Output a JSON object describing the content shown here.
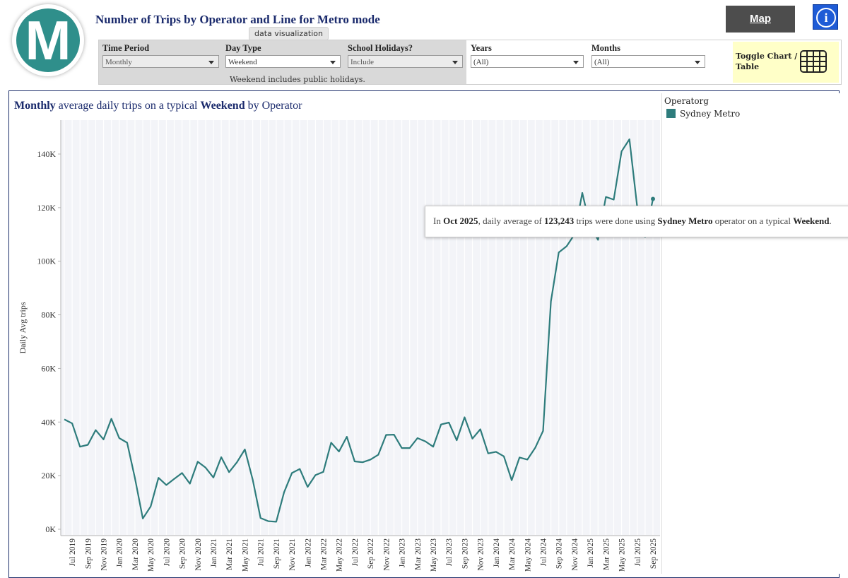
{
  "header": {
    "logo_letter": "M",
    "title": "Number of Trips by Operator and Line for Metro mode",
    "tooltip_tag": "data visualization",
    "map_label": "Map",
    "info_letter": "i"
  },
  "filters": {
    "time_period": {
      "label": "Time Period",
      "value": "Monthly"
    },
    "day_type": {
      "label": "Day Type",
      "value": "Weekend",
      "note": "Weekend includes public holidays."
    },
    "school_holidays": {
      "label": "School Holidays?",
      "value": "Include"
    },
    "years": {
      "label": "Years",
      "value": "(All)"
    },
    "months": {
      "label": "Months",
      "value": "(All)"
    },
    "toggle_label_1": "Toggle Chart /",
    "toggle_label_2": "Table"
  },
  "chart_title": {
    "part1": "Monthly",
    "part2": " average daily trips on a typical ",
    "part3": "Weekend",
    "part4": " by Operator"
  },
  "legend": {
    "title": "Operatorg",
    "items": [
      "Sydney Metro"
    ]
  },
  "hover": {
    "p1": "In ",
    "month": "Oct 2025",
    "p2": ", daily average of ",
    "value": "123,243",
    "p3": " trips were done using ",
    "operator": "Sydney Metro",
    "p4": " operator on a typical ",
    "day": "Weekend",
    "p5": "."
  },
  "colors": {
    "line": "#2e7c7c",
    "title": "#1a2a6c",
    "accent": "#2f8f8b"
  },
  "chart_data": {
    "type": "line",
    "title": "Monthly average daily trips on a typical Weekend by Operator",
    "xlabel": "",
    "ylabel": "Daily Avg trips",
    "ylim": [
      0,
      150000
    ],
    "yticks": [
      0,
      20000,
      40000,
      60000,
      80000,
      100000,
      120000,
      140000
    ],
    "ytick_labels": [
      "0K",
      "20K",
      "40K",
      "60K",
      "80K",
      "100K",
      "120K",
      "140K"
    ],
    "x_tick_labels": [
      "Jul 2019",
      "Sep 2019",
      "Nov 2019",
      "Jan 2020",
      "Mar 2020",
      "May 2020",
      "Jul 2020",
      "Sep 2020",
      "Nov 2020",
      "Jan 2021",
      "Mar 2021",
      "May 2021",
      "Jul 2021",
      "Sep 2021",
      "Nov 2021",
      "Jan 2022",
      "Mar 2022",
      "May 2022",
      "Jul 2022",
      "Sep 2022",
      "Nov 2022",
      "Jan 2023",
      "Mar 2023",
      "May 2023",
      "Jul 2023",
      "Sep 2023",
      "Nov 2023",
      "Jan 2024",
      "Mar 2024",
      "May 2024",
      "Jul 2024",
      "Sep 2024",
      "Nov 2024",
      "Jan 2025",
      "Mar 2025",
      "May 2025",
      "Jul 2025",
      "Sep 2025"
    ],
    "series": [
      {
        "name": "Sydney Metro",
        "start": "Jun 2019",
        "values": [
          41000,
          39500,
          30800,
          31500,
          37000,
          33500,
          41200,
          34000,
          32300,
          19000,
          4000,
          8500,
          19200,
          16500,
          18800,
          21000,
          17000,
          25200,
          23000,
          19300,
          26900,
          21300,
          25000,
          29800,
          18500,
          4200,
          3000,
          2800,
          13800,
          21000,
          22500,
          15800,
          20200,
          21400,
          32300,
          29000,
          34500,
          25300,
          25000,
          26000,
          27800,
          35200,
          35300,
          30300,
          30300,
          34000,
          32800,
          30800,
          39100,
          39800,
          33200,
          41800,
          33800,
          37300,
          28300,
          28900,
          27200,
          18300,
          26800,
          26000,
          30400,
          36700,
          85000,
          103300,
          105600,
          110000,
          125500,
          113000,
          108000,
          124000,
          123000,
          141000,
          145500,
          120000,
          109000,
          123243
        ]
      }
    ]
  }
}
